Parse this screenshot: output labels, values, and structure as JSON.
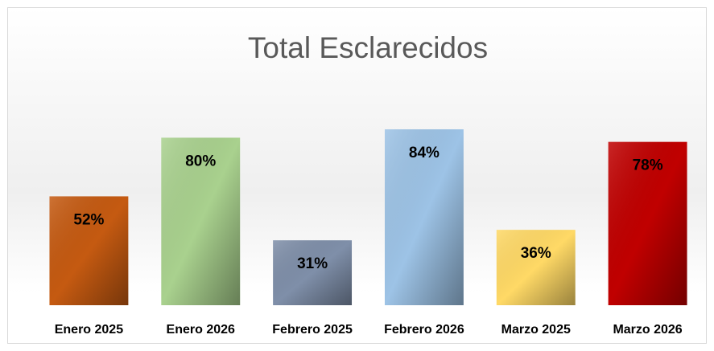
{
  "chart_data": {
    "type": "bar",
    "title": "Total Esclarecidos",
    "categories": [
      "Enero 2025",
      "Enero 2026",
      "Febrero 2025",
      "Febrero 2026",
      "Marzo 2025",
      "Marzo 2026"
    ],
    "values": [
      52,
      80,
      31,
      84,
      36,
      78
    ],
    "value_labels": [
      "52%",
      "80%",
      "31%",
      "84%",
      "36%",
      "78%"
    ],
    "colors": [
      "#c55a11",
      "#a9d18e",
      "#7f8fa9",
      "#9dc3e6",
      "#ffd966",
      "#c00000"
    ],
    "ylim": [
      0,
      100
    ]
  }
}
